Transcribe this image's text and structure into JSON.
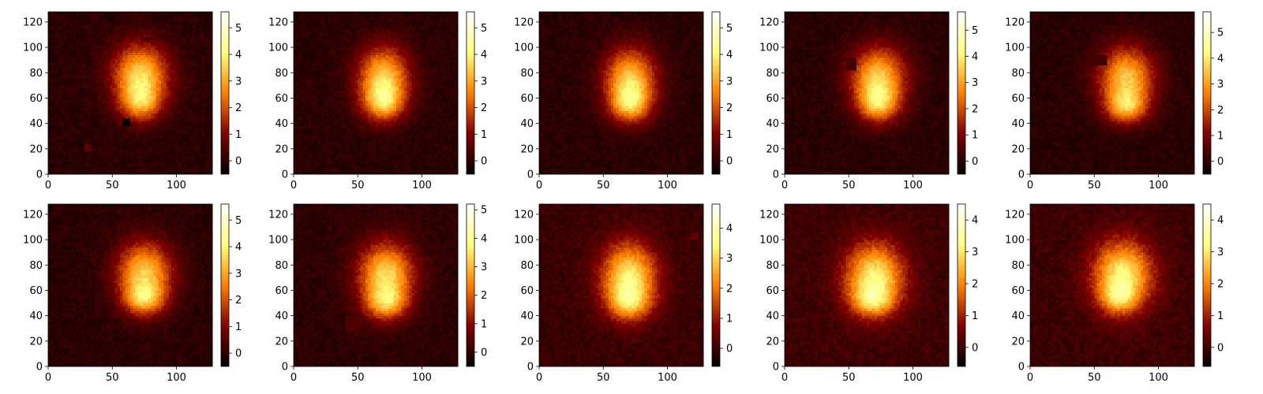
{
  "figure": {
    "rows": 2,
    "cols": 5,
    "colormap": "afmhot",
    "background": "#ffffff"
  },
  "chart_data": [
    {
      "type": "heatmap",
      "title": "",
      "xlabel": "",
      "ylabel": "",
      "xlim": [
        0,
        128
      ],
      "ylim": [
        0,
        128
      ],
      "xticks": [
        "0",
        "50",
        "100"
      ],
      "yticks": [
        "0",
        "20",
        "40",
        "60",
        "80",
        "100",
        "120"
      ],
      "colorbar": {
        "min": -0.5,
        "max": 5.6,
        "ticks": [
          "0",
          "1",
          "2",
          "3",
          "4",
          "5"
        ]
      },
      "blobs": [
        {
          "x": 72,
          "y": 78,
          "sx": 15,
          "sy": 17,
          "amp": 3.6
        },
        {
          "x": 72,
          "y": 56,
          "sx": 11,
          "sy": 10,
          "amp": 2.2
        }
      ],
      "patches": [
        {
          "x": 28,
          "y": 19,
          "w": 5,
          "h": 5,
          "v": 0.6
        },
        {
          "x": 59,
          "y": 38,
          "w": 4,
          "h": 5,
          "v": -0.5
        },
        {
          "x": 72,
          "y": 106,
          "w": 10,
          "h": 2,
          "v": 0.3
        }
      ]
    },
    {
      "type": "heatmap",
      "title": "",
      "xlabel": "",
      "ylabel": "",
      "xlim": [
        0,
        128
      ],
      "ylim": [
        0,
        128
      ],
      "xticks": [
        "0",
        "50",
        "100"
      ],
      "yticks": [
        "0",
        "20",
        "40",
        "60",
        "80",
        "100",
        "120"
      ],
      "colorbar": {
        "min": -0.5,
        "max": 5.6,
        "ticks": [
          "0",
          "1",
          "2",
          "3",
          "4",
          "5"
        ]
      },
      "blobs": [
        {
          "x": 70,
          "y": 76,
          "sx": 14,
          "sy": 17,
          "amp": 3.5
        },
        {
          "x": 70,
          "y": 56,
          "sx": 11,
          "sy": 10,
          "amp": 2.3
        }
      ],
      "patches": []
    },
    {
      "type": "heatmap",
      "title": "",
      "xlabel": "",
      "ylabel": "",
      "xlim": [
        0,
        128
      ],
      "ylim": [
        0,
        128
      ],
      "xticks": [
        "0",
        "50",
        "100"
      ],
      "yticks": [
        "0",
        "20",
        "40",
        "60",
        "80",
        "100",
        "120"
      ],
      "colorbar": {
        "min": -0.5,
        "max": 5.6,
        "ticks": [
          "0",
          "1",
          "2",
          "3",
          "4",
          "5"
        ]
      },
      "blobs": [
        {
          "x": 71,
          "y": 75,
          "sx": 14,
          "sy": 17,
          "amp": 3.4
        },
        {
          "x": 71,
          "y": 55,
          "sx": 11,
          "sy": 10,
          "amp": 2.4
        }
      ],
      "patches": []
    },
    {
      "type": "heatmap",
      "title": "",
      "xlabel": "",
      "ylabel": "",
      "xlim": [
        0,
        128
      ],
      "ylim": [
        0,
        128
      ],
      "xticks": [
        "0",
        "50",
        "100"
      ],
      "yticks": [
        "0",
        "20",
        "40",
        "60",
        "80",
        "100",
        "120"
      ],
      "colorbar": {
        "min": -0.5,
        "max": 5.7,
        "ticks": [
          "0",
          "1",
          "2",
          "3",
          "4",
          "5"
        ]
      },
      "blobs": [
        {
          "x": 73,
          "y": 76,
          "sx": 15,
          "sy": 17,
          "amp": 3.5
        },
        {
          "x": 73,
          "y": 55,
          "sx": 11,
          "sy": 10,
          "amp": 2.4
        }
      ],
      "patches": [
        {
          "x": 48,
          "y": 83,
          "w": 7,
          "h": 8,
          "v": 0.35
        }
      ]
    },
    {
      "type": "heatmap",
      "title": "",
      "xlabel": "",
      "ylabel": "",
      "xlim": [
        0,
        128
      ],
      "ylim": [
        0,
        128
      ],
      "xticks": [
        "0",
        "50",
        "100"
      ],
      "yticks": [
        "0",
        "20",
        "40",
        "60",
        "80",
        "100",
        "120"
      ],
      "colorbar": {
        "min": -0.5,
        "max": 5.8,
        "ticks": [
          "0",
          "1",
          "2",
          "3",
          "4",
          "5"
        ]
      },
      "blobs": [
        {
          "x": 75,
          "y": 76,
          "sx": 15,
          "sy": 17,
          "amp": 3.5
        },
        {
          "x": 75,
          "y": 53,
          "sx": 11,
          "sy": 9,
          "amp": 2.5
        }
      ],
      "patches": [
        {
          "x": 48,
          "y": 87,
          "w": 12,
          "h": 6,
          "v": 0.3
        }
      ]
    },
    {
      "type": "heatmap",
      "title": "",
      "xlabel": "",
      "ylabel": "",
      "xlim": [
        0,
        128
      ],
      "ylim": [
        0,
        128
      ],
      "xticks": [
        "0",
        "50",
        "100"
      ],
      "yticks": [
        "0",
        "20",
        "40",
        "60",
        "80",
        "100",
        "120"
      ],
      "colorbar": {
        "min": -0.5,
        "max": 5.6,
        "ticks": [
          "0",
          "1",
          "2",
          "3",
          "4",
          "5"
        ]
      },
      "blobs": [
        {
          "x": 75,
          "y": 74,
          "sx": 15,
          "sy": 17,
          "amp": 3.4
        },
        {
          "x": 75,
          "y": 53,
          "sx": 11,
          "sy": 9,
          "amp": 2.4
        }
      ],
      "patches": []
    },
    {
      "type": "heatmap",
      "title": "",
      "xlabel": "",
      "ylabel": "",
      "xlim": [
        0,
        128
      ],
      "ylim": [
        0,
        128
      ],
      "xticks": [
        "0",
        "50",
        "100"
      ],
      "yticks": [
        "0",
        "20",
        "40",
        "60",
        "80",
        "100",
        "120"
      ],
      "colorbar": {
        "min": -0.5,
        "max": 5.2,
        "ticks": [
          "0",
          "1",
          "2",
          "3",
          "4",
          "5"
        ]
      },
      "blobs": [
        {
          "x": 72,
          "y": 72,
          "sx": 15,
          "sy": 18,
          "amp": 3.4
        },
        {
          "x": 72,
          "y": 50,
          "sx": 11,
          "sy": 9,
          "amp": 2.0
        }
      ],
      "patches": [
        {
          "x": 41,
          "y": 28,
          "w": 10,
          "h": 12,
          "v": 0.35
        }
      ]
    },
    {
      "type": "heatmap",
      "title": "",
      "xlabel": "",
      "ylabel": "",
      "xlim": [
        0,
        128
      ],
      "ylim": [
        0,
        128
      ],
      "xticks": [
        "0",
        "50",
        "100"
      ],
      "yticks": [
        "0",
        "20",
        "40",
        "60",
        "80",
        "100",
        "120"
      ],
      "colorbar": {
        "min": -0.6,
        "max": 4.8,
        "ticks": [
          "0",
          "1",
          "2",
          "3",
          "4"
        ]
      },
      "blobs": [
        {
          "x": 70,
          "y": 70,
          "sx": 15,
          "sy": 19,
          "amp": 3.4
        },
        {
          "x": 70,
          "y": 50,
          "sx": 11,
          "sy": 9,
          "amp": 1.6
        }
      ],
      "patches": [
        {
          "x": 118,
          "y": 101,
          "w": 5,
          "h": 4,
          "v": 0.5
        }
      ]
    },
    {
      "type": "heatmap",
      "title": "",
      "xlabel": "",
      "ylabel": "",
      "xlim": [
        0,
        128
      ],
      "ylim": [
        0,
        128
      ],
      "xticks": [
        "0",
        "50",
        "100"
      ],
      "yticks": [
        "0",
        "20",
        "40",
        "60",
        "80",
        "100",
        "120"
      ],
      "colorbar": {
        "min": -0.6,
        "max": 4.5,
        "ticks": [
          "0",
          "1",
          "2",
          "3",
          "4"
        ]
      },
      "blobs": [
        {
          "x": 70,
          "y": 70,
          "sx": 16,
          "sy": 19,
          "amp": 3.2
        },
        {
          "x": 68,
          "y": 52,
          "sx": 11,
          "sy": 8,
          "amp": 1.5
        }
      ],
      "patches": []
    },
    {
      "type": "heatmap",
      "title": "",
      "xlabel": "",
      "ylabel": "",
      "xlim": [
        0,
        128
      ],
      "ylim": [
        0,
        128
      ],
      "xticks": [
        "0",
        "50",
        "100"
      ],
      "yticks": [
        "0",
        "20",
        "40",
        "60",
        "80",
        "100",
        "120"
      ],
      "colorbar": {
        "min": -0.6,
        "max": 4.5,
        "ticks": [
          "0",
          "1",
          "2",
          "3",
          "4"
        ]
      },
      "blobs": [
        {
          "x": 72,
          "y": 72,
          "sx": 16,
          "sy": 19,
          "amp": 3.2
        },
        {
          "x": 69,
          "y": 54,
          "sx": 10,
          "sy": 8,
          "amp": 1.4
        }
      ],
      "patches": []
    }
  ]
}
